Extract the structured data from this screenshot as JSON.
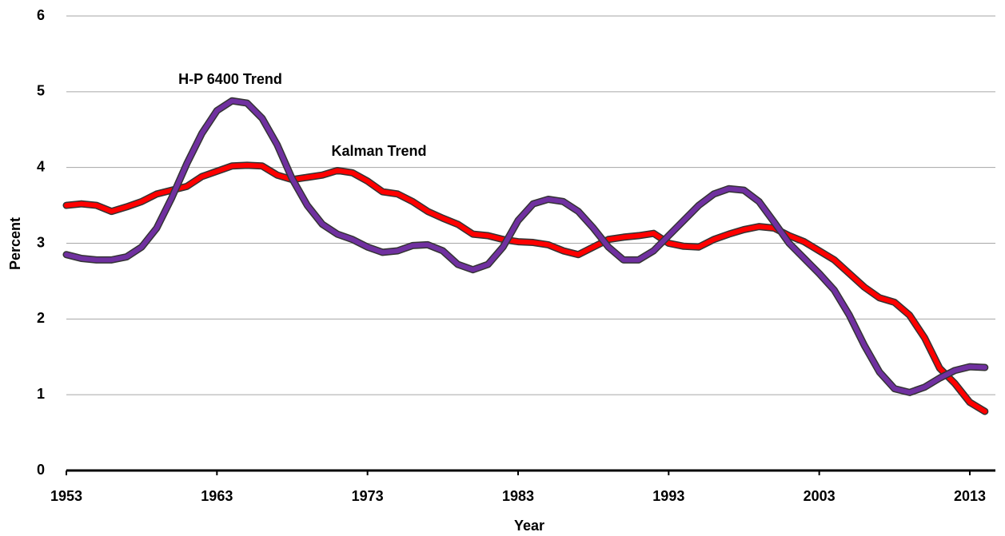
{
  "chart_data": {
    "type": "line",
    "x_label": "Year",
    "y_label": "Percent",
    "x": [
      1953,
      1954,
      1955,
      1956,
      1957,
      1958,
      1959,
      1960,
      1961,
      1962,
      1963,
      1964,
      1965,
      1966,
      1967,
      1968,
      1969,
      1970,
      1971,
      1972,
      1973,
      1974,
      1975,
      1976,
      1977,
      1978,
      1979,
      1980,
      1981,
      1982,
      1983,
      1984,
      1985,
      1986,
      1987,
      1988,
      1989,
      1990,
      1991,
      1992,
      1993,
      1994,
      1995,
      1996,
      1997,
      1998,
      1999,
      2000,
      2001,
      2002,
      2003,
      2004,
      2005,
      2006,
      2007,
      2008,
      2009,
      2010,
      2011,
      2012,
      2013,
      2014
    ],
    "series": [
      {
        "name": "Kalman Trend",
        "color": "#ff0000",
        "values": [
          3.5,
          3.52,
          3.5,
          3.42,
          3.48,
          3.55,
          3.65,
          3.7,
          3.75,
          3.88,
          3.95,
          4.02,
          4.03,
          4.02,
          3.9,
          3.84,
          3.87,
          3.9,
          3.96,
          3.93,
          3.82,
          3.68,
          3.65,
          3.55,
          3.42,
          3.33,
          3.25,
          3.12,
          3.1,
          3.05,
          3.02,
          3.01,
          2.98,
          2.9,
          2.85,
          2.95,
          3.05,
          3.08,
          3.1,
          3.13,
          3.0,
          2.96,
          2.95,
          3.05,
          3.12,
          3.18,
          3.22,
          3.2,
          3.1,
          3.02,
          2.9,
          2.78,
          2.6,
          2.42,
          2.28,
          2.22,
          2.05,
          1.75,
          1.35,
          1.15,
          0.9,
          0.78
        ]
      },
      {
        "name": "H-P 6400 Trend",
        "color": "#7030a0",
        "values": [
          2.85,
          2.8,
          2.78,
          2.78,
          2.82,
          2.95,
          3.2,
          3.6,
          4.05,
          4.45,
          4.75,
          4.88,
          4.85,
          4.65,
          4.3,
          3.85,
          3.5,
          3.25,
          3.12,
          3.05,
          2.95,
          2.88,
          2.9,
          2.97,
          2.98,
          2.9,
          2.72,
          2.65,
          2.72,
          2.95,
          3.3,
          3.52,
          3.58,
          3.55,
          3.42,
          3.2,
          2.95,
          2.78,
          2.78,
          2.9,
          3.1,
          3.3,
          3.5,
          3.65,
          3.72,
          3.7,
          3.55,
          3.28,
          3.0,
          2.8,
          2.6,
          2.38,
          2.05,
          1.65,
          1.3,
          1.08,
          1.03,
          1.1,
          1.22,
          1.32,
          1.37,
          1.36
        ]
      }
    ],
    "xlim": [
      1953,
      2014.7
    ],
    "xticks": [
      1953,
      1963,
      1973,
      1983,
      1993,
      2003,
      2013
    ],
    "ylim": [
      0,
      6
    ],
    "yticks": [
      0,
      1,
      2,
      3,
      4,
      5,
      6
    ],
    "grid": true
  }
}
